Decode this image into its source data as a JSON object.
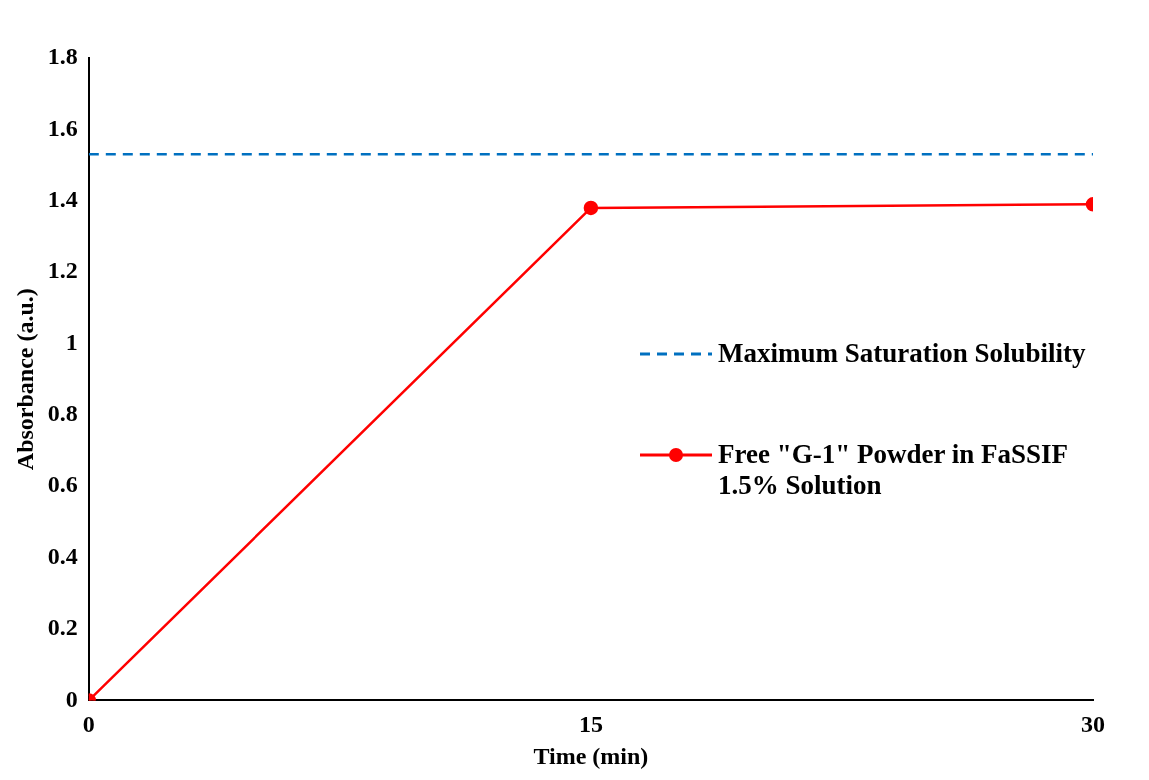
{
  "chart_data": {
    "type": "line",
    "xlabel": "Time (min)",
    "ylabel": "Absorbance (a.u.)",
    "x": [
      0,
      15,
      30
    ],
    "xlim": [
      0,
      30
    ],
    "xticks": [
      0,
      15,
      30
    ],
    "ylim": [
      0,
      1.8
    ],
    "yticks": [
      0,
      0.2,
      0.4,
      0.6,
      0.8,
      1,
      1.2,
      1.4,
      1.6,
      1.8
    ],
    "grid": false,
    "legend": "right",
    "series": [
      {
        "name": "Maximum Saturation Solubility",
        "color": "#0070c0",
        "values": [
          1.53,
          1.53,
          1.53
        ],
        "line_style": "dashed",
        "marker": "none"
      },
      {
        "name": "Free \"G-1\" Powder in FaSSIF 1.5% Solution",
        "color": "#ff0000",
        "values": [
          0,
          1.38,
          1.39
        ],
        "line_style": "solid",
        "marker": "circle"
      }
    ]
  }
}
